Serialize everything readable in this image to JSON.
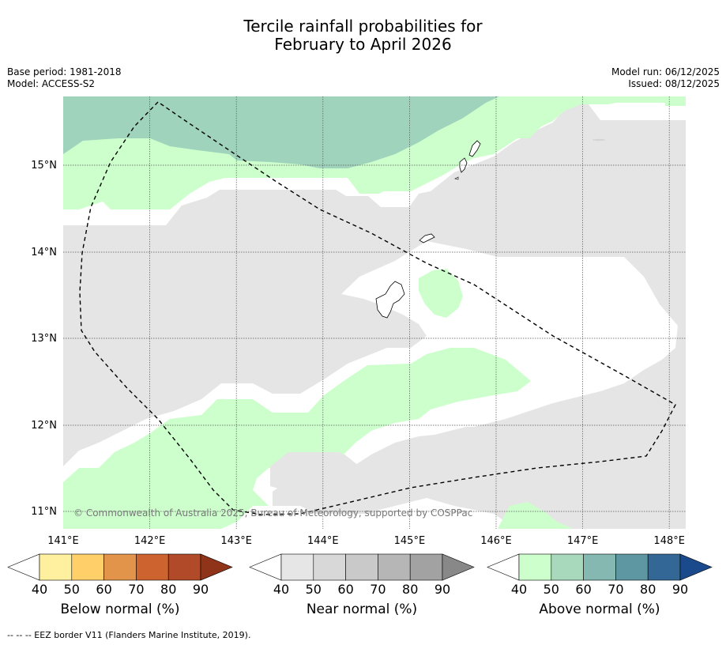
{
  "title": {
    "line1": "Tercile rainfall probabilities for",
    "line2": "February to April 2026"
  },
  "meta": {
    "base_period": "Base period: 1981-2018",
    "model": "Model: ACCESS-S2",
    "model_run": "Model run: 06/12/2025",
    "issued": "Issued: 08/12/2025"
  },
  "map": {
    "lon_labels": [
      "141°E",
      "142°E",
      "143°E",
      "144°E",
      "145°E",
      "146°E",
      "147°E",
      "148°E"
    ],
    "lat_labels": [
      "15°N",
      "14°N",
      "13°N",
      "12°N",
      "11°N"
    ],
    "copyright": "© Commonwealth of Australia 2025, Bureau of Meteorology, supported by COSPPac",
    "colors": {
      "near_normal_40": "#e5e5e5",
      "above_normal_40": "#ccffcc",
      "above_normal_50": "#9fd3bb",
      "no_signal": "#ffffff"
    }
  },
  "colorbars": [
    {
      "label": "Below normal (%)",
      "ticks": [
        "40",
        "50",
        "60",
        "70",
        "80",
        "90"
      ],
      "colors": [
        "#ffffff",
        "#fff0a0",
        "#ffd06a",
        "#e2954a",
        "#cd6430",
        "#b04a28",
        "#8f3418"
      ]
    },
    {
      "label": "Near normal (%)",
      "ticks": [
        "40",
        "50",
        "60",
        "70",
        "80",
        "90"
      ],
      "colors": [
        "#ffffff",
        "#e6e6e6",
        "#d8d8d8",
        "#c9c9c9",
        "#b6b6b6",
        "#a2a2a2",
        "#888888"
      ]
    },
    {
      "label": "Above normal (%)",
      "ticks": [
        "40",
        "50",
        "60",
        "70",
        "80",
        "90"
      ],
      "colors": [
        "#ffffff",
        "#ccffcc",
        "#a9d9bd",
        "#84b8b0",
        "#5e96a2",
        "#326796",
        "#1b4a8c"
      ]
    }
  ],
  "footer": "--  --  -- EEZ border V11 (Flanders Marine Institute, 2019)."
}
